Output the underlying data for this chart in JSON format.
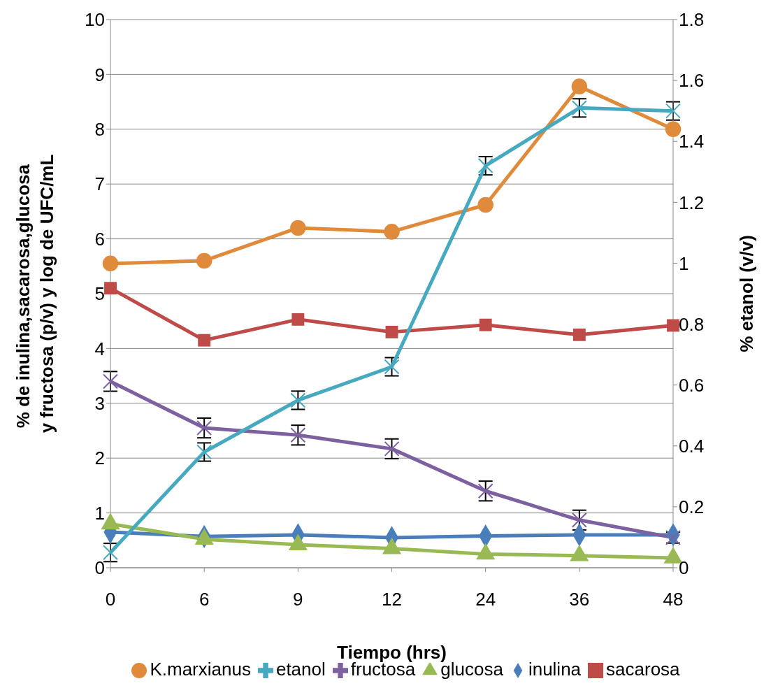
{
  "chart_data": {
    "type": "line",
    "xlabel": "Tiempo (hrs)",
    "ylabel": "% de inulina,sacarosa,glucosa  y fructosa (p/v) y log de UFC/mL",
    "y2label": "% etanol (v/v)",
    "categories": [
      "0",
      "6",
      "9",
      "12",
      "24",
      "36",
      "48"
    ],
    "series": [
      {
        "name": "inulina",
        "color": "#4a7ebb",
        "marker": "diamond",
        "values": [
          0.65,
          0.57,
          0.6,
          0.55,
          0.58,
          0.6,
          0.6
        ]
      },
      {
        "name": "sacarosa",
        "color": "#be4b48",
        "marker": "square",
        "values": [
          5.1,
          4.15,
          4.53,
          4.3,
          4.43,
          4.25,
          4.42
        ]
      },
      {
        "name": "glucosa",
        "color": "#98b954",
        "marker": "triangle",
        "values": [
          0.8,
          0.52,
          0.42,
          0.35,
          0.25,
          0.22,
          0.18
        ]
      },
      {
        "name": "fructosa",
        "color": "#7d60a0",
        "marker": "cross",
        "values": [
          3.4,
          2.55,
          2.42,
          2.17,
          1.4,
          0.87,
          0.55
        ],
        "errors": [
          0.18,
          0.18,
          0.18,
          0.18,
          0.18,
          0.18,
          0.1
        ]
      },
      {
        "name": "K.marxianus",
        "color": "#e08b3c",
        "marker": "circle",
        "values": [
          5.55,
          5.6,
          6.2,
          6.13,
          6.62,
          8.78,
          8.0
        ]
      },
      {
        "name": "etanol",
        "color": "#46a9c0",
        "marker": "cross",
        "axis": "y2",
        "values": [
          0.05,
          0.38,
          0.55,
          0.66,
          1.32,
          1.51,
          1.5
        ],
        "errors": [
          0.03,
          0.03,
          0.03,
          0.03,
          0.03,
          0.03,
          0.03
        ]
      }
    ],
    "ylim": [
      0,
      10
    ],
    "yticks": [
      0,
      1,
      2,
      3,
      4,
      5,
      6,
      7,
      8,
      9,
      10
    ],
    "y2lim": [
      0,
      1.8
    ],
    "y2ticks": [
      0,
      0.2,
      0.4,
      0.6,
      0.8,
      1,
      1.2,
      1.4,
      1.6,
      1.8
    ],
    "grid": "y",
    "legend": "bottom",
    "line_style": "solid"
  }
}
